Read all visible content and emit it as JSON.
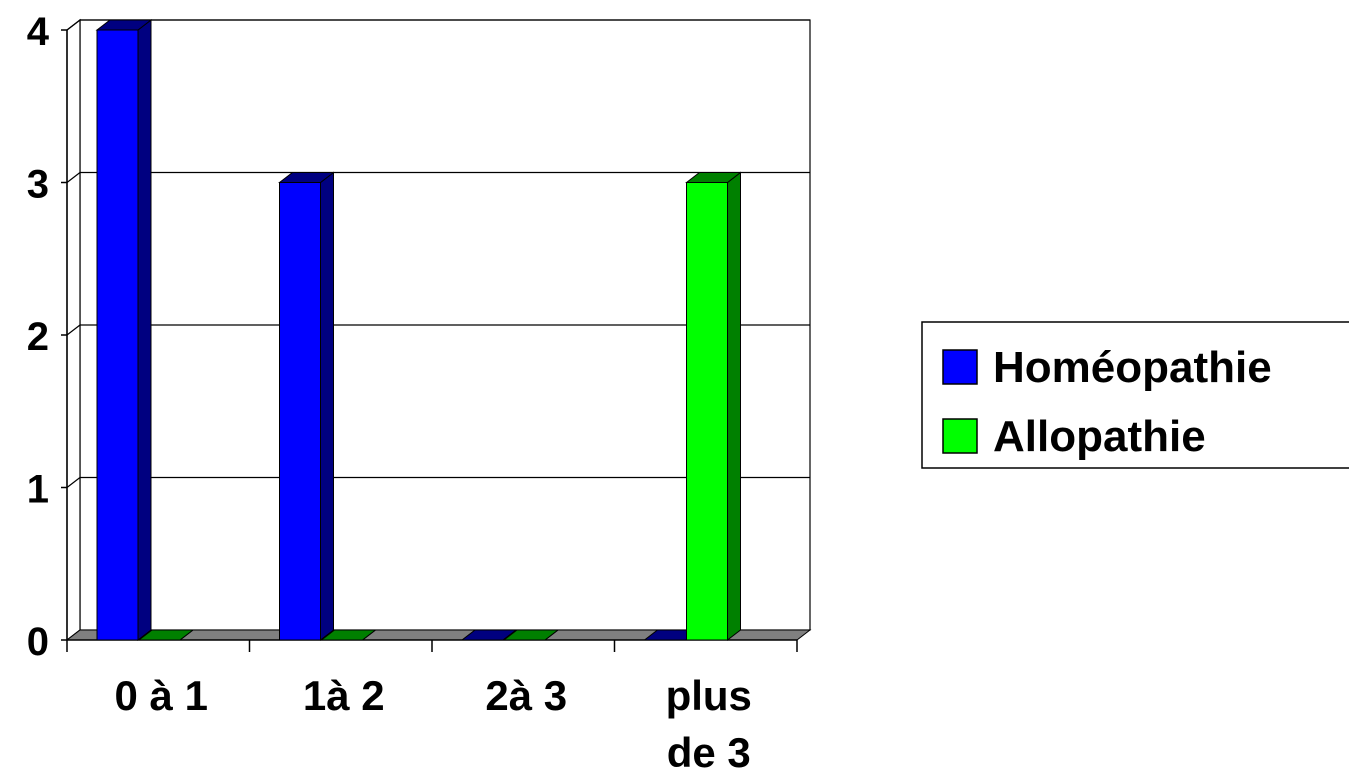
{
  "chart_data": {
    "type": "bar",
    "title": "",
    "xlabel": "",
    "ylabel": "",
    "categories": [
      [
        "0 à 1"
      ],
      [
        "1à 2"
      ],
      [
        "2à 3"
      ],
      [
        "plus",
        "de 3"
      ]
    ],
    "series": [
      {
        "name": "Homéopathie",
        "values": [
          4,
          3,
          0,
          0
        ],
        "color": "#0000ff",
        "color_dark": "#000080"
      },
      {
        "name": "Allopathie",
        "values": [
          0,
          0,
          0,
          3
        ],
        "color": "#00ff00",
        "color_dark": "#008000"
      }
    ],
    "ylim": [
      0,
      4
    ],
    "yticks": [
      0,
      1,
      2,
      3,
      4
    ],
    "grid": true,
    "legend_position": "right",
    "style": "3d-column",
    "floor_color": "#808080"
  }
}
